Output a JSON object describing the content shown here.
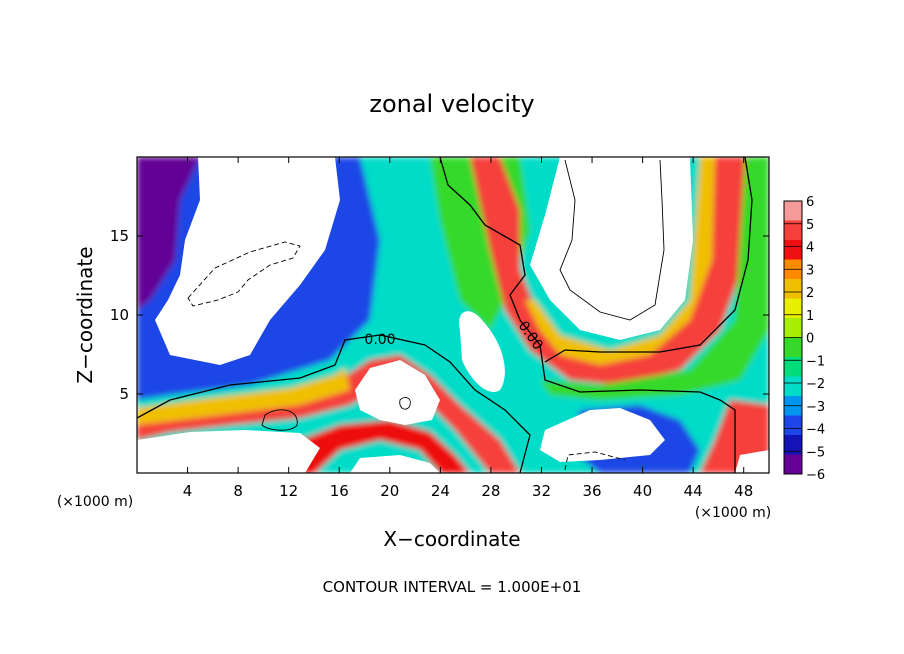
{
  "chart_data": {
    "type": "heatmap",
    "title": "zonal velocity",
    "xlabel": "X−coordinate",
    "ylabel": "Z−coordinate",
    "x_unit_left": "(×1000 m)",
    "x_unit_right": "(×1000 m)",
    "footer": "CONTOUR INTERVAL = 1.000E+01",
    "contour_label": "0.00",
    "xlim": [
      0,
      50
    ],
    "ylim": [
      0,
      20
    ],
    "x_ticks": [
      "4",
      "8",
      "12",
      "16",
      "20",
      "24",
      "28",
      "32",
      "36",
      "40",
      "44",
      "48"
    ],
    "y_ticks": [
      "5",
      "10",
      "15"
    ],
    "colorbar": {
      "levels": [
        "6",
        "5",
        "4",
        "3",
        "2",
        "1",
        "0",
        "−1",
        "−2",
        "−3",
        "−4",
        "−5",
        "−6"
      ],
      "colors": [
        "#f59a9a",
        "#f5413b",
        "#ee1010",
        "#ff8a00",
        "#f0c000",
        "#e8f000",
        "#a8ee00",
        "#36d92a",
        "#00dc7a",
        "#00dcc8",
        "#0096f0",
        "#1e46e6",
        "#1414b4",
        "#640096"
      ]
    },
    "grid": false
  }
}
